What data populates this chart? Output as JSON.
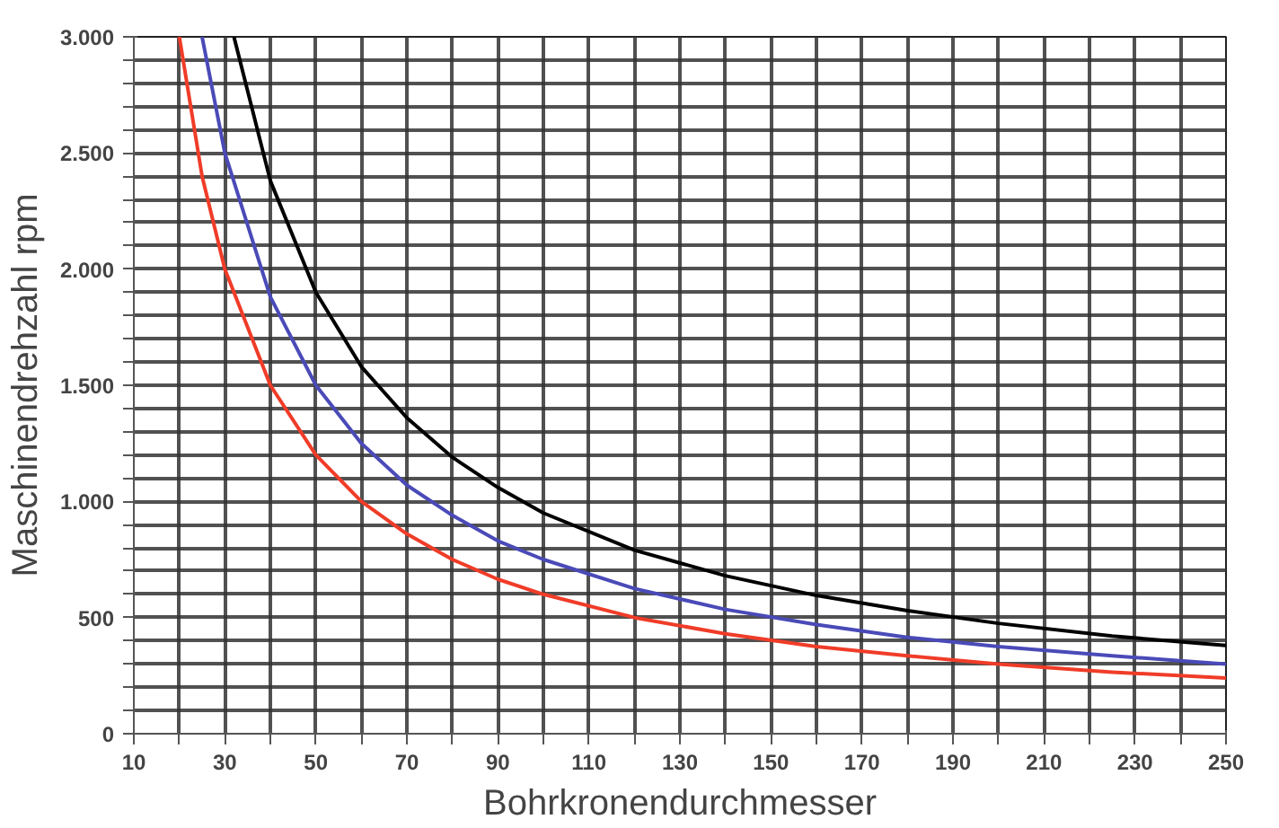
{
  "chart_data": {
    "type": "line",
    "xlabel": "Bohrkronendurchmesser",
    "ylabel": "Maschinendrehzahl rpm",
    "xlim": [
      10,
      250
    ],
    "ylim": [
      0,
      3000
    ],
    "xticks": [
      10,
      {
        "value": 20,
        "label": null
      },
      30,
      {
        "value": 40,
        "label": null
      },
      50,
      {
        "value": 60,
        "label": null
      },
      70,
      {
        "value": 80,
        "label": null
      },
      90,
      {
        "value": 100,
        "label": null
      },
      110,
      {
        "value": 120,
        "label": null
      },
      130,
      {
        "value": 140,
        "label": null
      },
      150,
      {
        "value": 160,
        "label": null
      },
      170,
      {
        "value": 180,
        "label": null
      },
      190,
      {
        "value": 200,
        "label": null
      },
      210,
      {
        "value": 220,
        "label": null
      },
      230,
      {
        "value": 240,
        "label": null
      },
      250
    ],
    "yticks": [
      {
        "value": 0,
        "label": "0"
      },
      {
        "value": 100,
        "label": null
      },
      {
        "value": 200,
        "label": null
      },
      {
        "value": 300,
        "label": null
      },
      {
        "value": 400,
        "label": null
      },
      {
        "value": 500,
        "label": "500"
      },
      {
        "value": 600,
        "label": null
      },
      {
        "value": 700,
        "label": null
      },
      {
        "value": 800,
        "label": null
      },
      {
        "value": 900,
        "label": null
      },
      {
        "value": 1000,
        "label": "1.000"
      },
      {
        "value": 1100,
        "label": null
      },
      {
        "value": 1200,
        "label": null
      },
      {
        "value": 1300,
        "label": null
      },
      {
        "value": 1400,
        "label": null
      },
      {
        "value": 1500,
        "label": "1.500"
      },
      {
        "value": 1600,
        "label": null
      },
      {
        "value": 1700,
        "label": null
      },
      {
        "value": 1800,
        "label": null
      },
      {
        "value": 1900,
        "label": null
      },
      {
        "value": 2000,
        "label": "2.000"
      },
      {
        "value": 2100,
        "label": null
      },
      {
        "value": 2200,
        "label": null
      },
      {
        "value": 2300,
        "label": null
      },
      {
        "value": 2400,
        "label": null
      },
      {
        "value": 2500,
        "label": "2.500"
      },
      {
        "value": 2600,
        "label": null
      },
      {
        "value": 2700,
        "label": null
      },
      {
        "value": 2800,
        "label": null
      },
      {
        "value": 2900,
        "label": null
      },
      {
        "value": 3000,
        "label": "3.000"
      }
    ],
    "grid": true,
    "series": [
      {
        "color": "#000000",
        "x": [
          32,
          40,
          50,
          60,
          70,
          80,
          90,
          100,
          120,
          140,
          160,
          180,
          200,
          225,
          250
        ],
        "values": [
          3000,
          2380,
          1900,
          1580,
          1360,
          1190,
          1060,
          950,
          790,
          680,
          595,
          530,
          475,
          420,
          380
        ]
      },
      {
        "color": "#4a4ab8",
        "x": [
          25,
          30,
          40,
          50,
          60,
          70,
          80,
          90,
          100,
          120,
          140,
          160,
          180,
          200,
          225,
          250
        ],
        "values": [
          3000,
          2500,
          1880,
          1500,
          1250,
          1070,
          940,
          830,
          750,
          625,
          535,
          470,
          415,
          375,
          335,
          300
        ]
      },
      {
        "color": "#f03c28",
        "x": [
          20,
          25,
          30,
          40,
          50,
          60,
          70,
          80,
          90,
          100,
          120,
          140,
          160,
          180,
          200,
          225,
          250
        ],
        "values": [
          3000,
          2400,
          2000,
          1500,
          1200,
          1000,
          860,
          750,
          665,
          600,
          500,
          430,
          375,
          335,
          300,
          265,
          240
        ]
      }
    ]
  }
}
